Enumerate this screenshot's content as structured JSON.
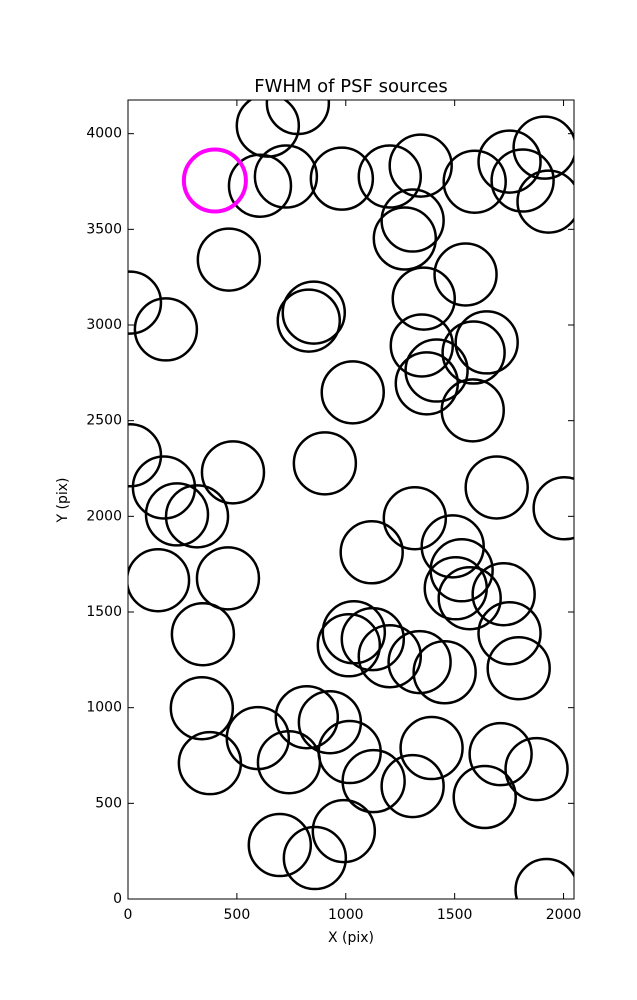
{
  "chart_data": {
    "type": "scatter",
    "title": "FWHM of PSF sources",
    "xlabel": "X (pix)",
    "ylabel": "Y (pix)",
    "xlim": [
      0,
      2048
    ],
    "ylim": [
      0,
      4176
    ],
    "xticks": [
      0,
      500,
      1000,
      1500,
      2000
    ],
    "yticks": [
      0,
      500,
      1000,
      1500,
      2000,
      2500,
      3000,
      3500,
      4000
    ],
    "series": [
      {
        "color": "#000000",
        "x": [
          780,
          642,
          606,
          725,
          982,
          1202,
          1344,
          1592,
          1752,
          1913,
          1812,
          1931,
          1307,
          1271,
          463,
          1550,
          9,
          174,
          853,
          830,
          1358,
          1349,
          1647,
          1587,
          1417,
          1372,
          1583,
          1032,
          9,
          165,
          482,
          904,
          225,
          317,
          1693,
          2005,
          1317,
          1119,
          1491,
          1532,
          138,
          459,
          1505,
          1569,
          1725,
          1037,
          1014,
          1124,
          1202,
          1339,
          1454,
          1752,
          1794,
          344,
          339,
          376,
          596,
          739,
          821,
          927,
          1018,
          1128,
          1307,
          1394,
          1711,
          1876,
          1638,
          697,
          858,
          991,
          1922
        ],
        "y": [
          4160,
          4042,
          3728,
          3776,
          3765,
          3776,
          3833,
          3749,
          3854,
          3927,
          3755,
          3645,
          3546,
          3452,
          3342,
          3264,
          3117,
          2977,
          3065,
          3023,
          3138,
          2893,
          2909,
          2856,
          2762,
          2695,
          2554,
          2648,
          2319,
          2151,
          2230,
          2277,
          2010,
          2000,
          2151,
          2042,
          1990,
          1812,
          1843,
          1718,
          1666,
          1676,
          1624,
          1572,
          1593,
          1394,
          1326,
          1358,
          1269,
          1238,
          1185,
          1389,
          1206,
          1384,
          997,
          710,
          841,
          715,
          950,
          924,
          768,
          616,
          590,
          789,
          757,
          679,
          533,
          282,
          214,
          355,
          47
        ]
      },
      {
        "color": "#ff00ff",
        "x": [
          399
        ],
        "y": [
          3755
        ]
      }
    ]
  }
}
